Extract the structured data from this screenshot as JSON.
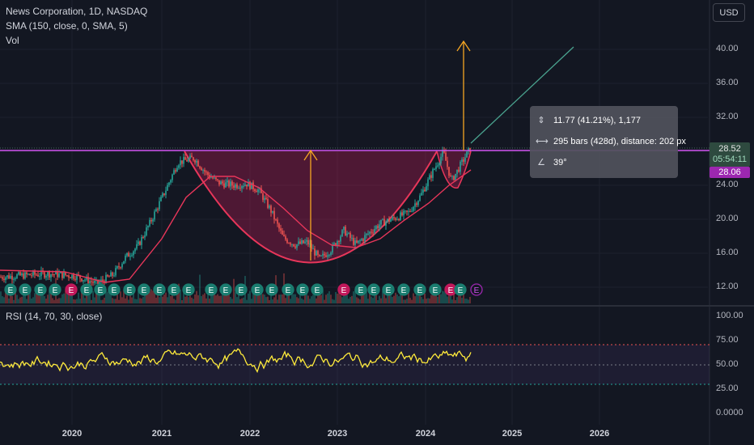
{
  "header": {
    "symbol_line": "News Corporation, 1D, NASDAQ",
    "sma_line": "SMA (150, close, 0, SMA, 5)",
    "vol_line": "Vol",
    "currency": "USD"
  },
  "price_axis": [
    "40.00",
    "36.00",
    "32.00",
    "28.00",
    "24.00",
    "20.00",
    "16.00",
    "12.00"
  ],
  "price_tag": {
    "price": "28.52",
    "countdown": "05:54:11",
    "level": "28.06"
  },
  "measure_tool": {
    "range": "11.77 (41.21%), 1,177",
    "bars": "295 bars (428d), distance: 202 px",
    "angle": "39°"
  },
  "rsi": {
    "legend": "RSI (14, 70, 30, close)",
    "axis": [
      "100.00",
      "75.00",
      "50.00",
      "25.00",
      "0.0000"
    ]
  },
  "time_axis": [
    "2020",
    "2021",
    "2022",
    "2023",
    "2024",
    "2025",
    "2026"
  ],
  "earnings_markers": [
    "E",
    "E",
    "E",
    "E",
    "E",
    "E",
    "E",
    "E",
    "E",
    "E",
    "E",
    "E",
    "E",
    "E",
    "E",
    "E",
    "E",
    "E",
    "E",
    "E",
    "E",
    "E",
    "E",
    "E",
    "E",
    "E",
    "E",
    "E",
    "E",
    "E",
    "E"
  ],
  "colors": {
    "background": "#131722",
    "bull": "#26a69a",
    "bear": "#ef5350",
    "sma": "#e8365a",
    "level": "#d152f0",
    "rsi": "#ffeb3b",
    "arrow": "#f5a623",
    "trend": "#4aa38f"
  }
}
